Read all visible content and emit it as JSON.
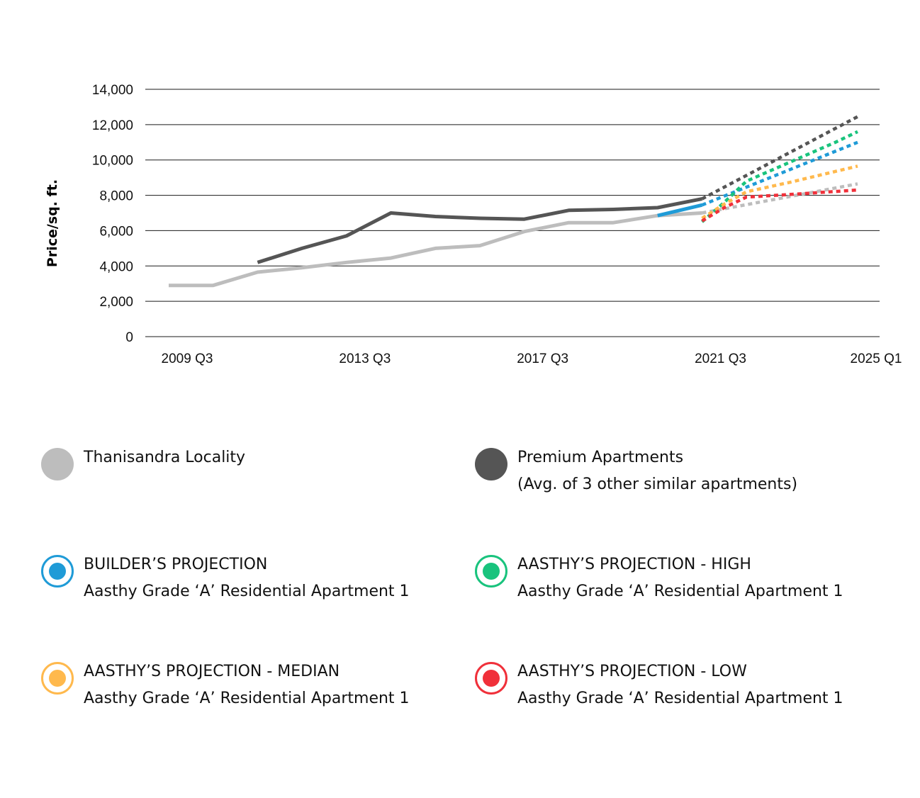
{
  "chart_data": {
    "type": "line",
    "ylabel": "Price/sq. ft.",
    "ylim": [
      0,
      14000
    ],
    "yticks": [
      "0",
      "2,000",
      "4,000",
      "6,000",
      "8,000",
      "10,000",
      "12,000",
      "14,000"
    ],
    "xticks": [
      "2009 Q3",
      "2013 Q3",
      "2017 Q3",
      "2021 Q3",
      "2025 Q1"
    ],
    "grid": "horizontal",
    "series": [
      {
        "name": "Thanisandra Locality",
        "color": "#bdbdbd",
        "style": "solid",
        "x": [
          "2009 Q3",
          "2010 Q3",
          "2011 Q3",
          "2012 Q3",
          "2013 Q3",
          "2014 Q3",
          "2015 Q3",
          "2016 Q3",
          "2017 Q3",
          "2018 Q3",
          "2019 Q3",
          "2020 Q3",
          "2021 Q3"
        ],
        "values": [
          2900,
          2900,
          3650,
          3900,
          4200,
          4450,
          5000,
          5150,
          5950,
          6450,
          6450,
          6850,
          7000
        ]
      },
      {
        "name": "Thanisandra Locality",
        "color": "#bdbdbd",
        "style": "dotted",
        "x": [
          "2021 Q3",
          "2025 Q1"
        ],
        "values": [
          7000,
          8650
        ]
      },
      {
        "name": "Premium Apartments",
        "color": "#555555",
        "style": "solid",
        "x": [
          "2011 Q3",
          "2012 Q3",
          "2013 Q3",
          "2014 Q3",
          "2015 Q3",
          "2016 Q3",
          "2017 Q3",
          "2018 Q3",
          "2019 Q3",
          "2020 Q3",
          "2021 Q3"
        ],
        "values": [
          4200,
          5000,
          5700,
          7000,
          6800,
          6700,
          6650,
          7150,
          7200,
          7300,
          7800
        ]
      },
      {
        "name": "Premium Apartments",
        "color": "#555555",
        "style": "dotted",
        "x": [
          "2021 Q3",
          "2025 Q1"
        ],
        "values": [
          7800,
          12450
        ]
      },
      {
        "name": "BUILDER'S PROJECTION",
        "color": "#1f9bd7",
        "style": "solid",
        "x": [
          "2020 Q3",
          "2021 Q3"
        ],
        "values": [
          6850,
          7450
        ]
      },
      {
        "name": "BUILDER'S PROJECTION",
        "color": "#1f9bd7",
        "style": "dotted",
        "x": [
          "2021 Q3",
          "2025 Q1"
        ],
        "values": [
          7450,
          11000
        ]
      },
      {
        "name": "AASTHY'S PROJECTION - HIGH",
        "color": "#19c37d",
        "style": "dotted",
        "x": [
          "2021 Q3",
          "2022 Q1",
          "2022 Q3",
          "2023 Q3",
          "2024 Q3",
          "2025 Q1"
        ],
        "values": [
          6500,
          7600,
          8800,
          9900,
          11000,
          11600
        ]
      },
      {
        "name": "AASTHY'S PROJECTION - MEDIAN",
        "color": "#ffb94d",
        "style": "dotted",
        "x": [
          "2021 Q3",
          "2022 Q1",
          "2022 Q3",
          "2023 Q3",
          "2025 Q1"
        ],
        "values": [
          6700,
          7500,
          8200,
          8750,
          9650
        ]
      },
      {
        "name": "AASTHY'S PROJECTION - LOW",
        "color": "#f0303a",
        "style": "dotted",
        "x": [
          "2021 Q3",
          "2022 Q1",
          "2022 Q3",
          "2023 Q3",
          "2025 Q1"
        ],
        "values": [
          6550,
          7300,
          7900,
          8050,
          8300
        ]
      }
    ]
  },
  "legend": [
    {
      "id": "thanisandra",
      "line1": "Thanisandra Locality",
      "line2": "",
      "color": "#bdbdbd",
      "ring": false
    },
    {
      "id": "premium",
      "line1": "Premium Apartments",
      "line2": "(Avg. of 3 other similar apartments)",
      "color": "#555555",
      "ring": false
    },
    {
      "id": "builder",
      "line1": "BUILDER’S PROJECTION",
      "line2": "Aasthy Grade ‘A’ Residential Apartment 1",
      "color": "#1f9bd7",
      "ring": true
    },
    {
      "id": "high",
      "line1": "AASTHY’S PROJECTION - HIGH",
      "line2": "Aasthy Grade ‘A’ Residential Apartment 1",
      "color": "#19c37d",
      "ring": true
    },
    {
      "id": "median",
      "line1": "AASTHY’S PROJECTION - MEDIAN",
      "line2": "Aasthy Grade ‘A’ Residential Apartment 1",
      "color": "#ffb94d",
      "ring": true
    },
    {
      "id": "low",
      "line1": "AASTHY’S PROJECTION - LOW",
      "line2": "Aasthy Grade ‘A’ Residential Apartment 1",
      "color": "#f0303a",
      "ring": true
    }
  ]
}
